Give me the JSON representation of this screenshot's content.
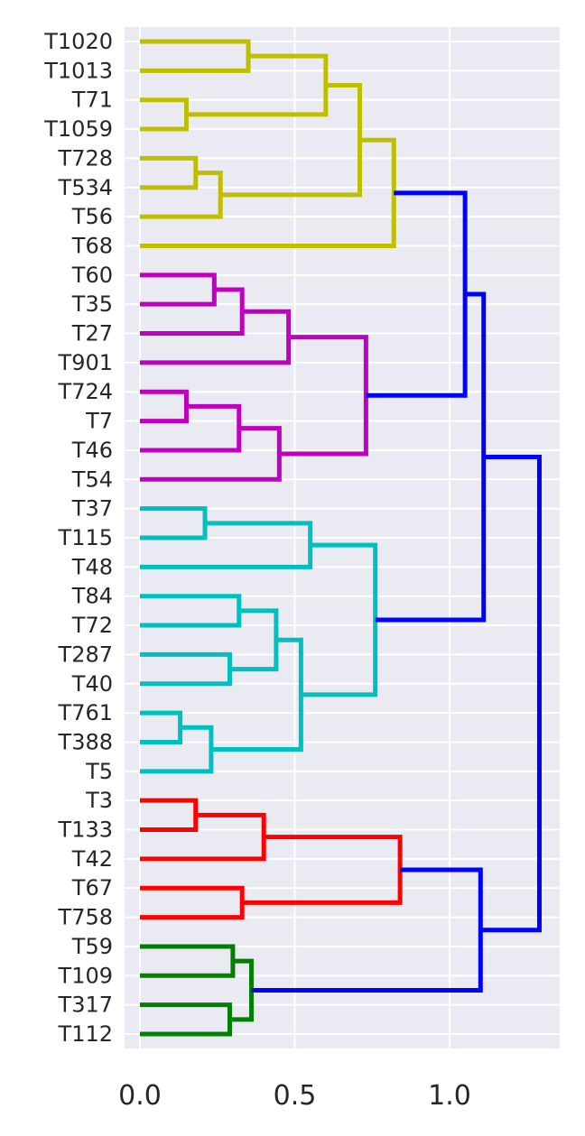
{
  "chart_data": {
    "type": "dendrogram",
    "orientation": "horizontal",
    "leaves": [
      "T1020",
      "T1013",
      "T71",
      "T1059",
      "T728",
      "T534",
      "T56",
      "T68",
      "T60",
      "T35",
      "T27",
      "T901",
      "T724",
      "T7",
      "T46",
      "T54",
      "T37",
      "T115",
      "T48",
      "T84",
      "T72",
      "T287",
      "T40",
      "T761",
      "T388",
      "T5",
      "T3",
      "T133",
      "T42",
      "T67",
      "T758",
      "T59",
      "T109",
      "T317",
      "T112"
    ],
    "x_ticks": [
      {
        "value": 0.0,
        "label": "0.0"
      },
      {
        "value": 0.5,
        "label": "0.5"
      },
      {
        "value": 1.0,
        "label": "1.0"
      }
    ],
    "xlim": [
      0,
      1.35
    ],
    "grid": true,
    "colors": {
      "background": "#eaeaf2",
      "grid": "#ffffff",
      "above_threshold": "#0000ff",
      "clusters": {
        "y": "#bfbf00",
        "m": "#bf00bf",
        "c": "#00bfbf",
        "r": "#ff0000",
        "g": "#008000"
      }
    },
    "merges": [
      {
        "id": "m1",
        "a": "T1020",
        "b": "T1013",
        "height": 0.35,
        "color": "#bfbf00"
      },
      {
        "id": "m2",
        "a": "T71",
        "b": "T1059",
        "height": 0.15,
        "color": "#bfbf00"
      },
      {
        "id": "m3",
        "a": "m1",
        "b": "m2",
        "height": 0.6,
        "color": "#bfbf00"
      },
      {
        "id": "m4",
        "a": "T728",
        "b": "T534",
        "height": 0.18,
        "color": "#bfbf00"
      },
      {
        "id": "m5",
        "a": "m4",
        "b": "T56",
        "height": 0.26,
        "color": "#bfbf00"
      },
      {
        "id": "m6",
        "a": "m3",
        "b": "m5",
        "height": 0.71,
        "color": "#bfbf00"
      },
      {
        "id": "m7",
        "a": "m6",
        "b": "T68",
        "height": 0.82,
        "color": "#bfbf00"
      },
      {
        "id": "m8",
        "a": "T60",
        "b": "T35",
        "height": 0.24,
        "color": "#bf00bf"
      },
      {
        "id": "m9",
        "a": "m8",
        "b": "T27",
        "height": 0.33,
        "color": "#bf00bf"
      },
      {
        "id": "m10",
        "a": "m9",
        "b": "T901",
        "height": 0.48,
        "color": "#bf00bf"
      },
      {
        "id": "m11",
        "a": "T724",
        "b": "T7",
        "height": 0.15,
        "color": "#bf00bf"
      },
      {
        "id": "m12",
        "a": "m11",
        "b": "T46",
        "height": 0.32,
        "color": "#bf00bf"
      },
      {
        "id": "m13",
        "a": "m12",
        "b": "T54",
        "height": 0.45,
        "color": "#bf00bf"
      },
      {
        "id": "m14",
        "a": "m10",
        "b": "m13",
        "height": 0.73,
        "color": "#bf00bf"
      },
      {
        "id": "m15",
        "a": "m7",
        "b": "m14",
        "height": 1.05,
        "color": "#0000ff"
      },
      {
        "id": "m16",
        "a": "T37",
        "b": "T115",
        "height": 0.21,
        "color": "#00bfbf"
      },
      {
        "id": "m17",
        "a": "m16",
        "b": "T48",
        "height": 0.55,
        "color": "#00bfbf"
      },
      {
        "id": "m18",
        "a": "T84",
        "b": "T72",
        "height": 0.32,
        "color": "#00bfbf"
      },
      {
        "id": "m19",
        "a": "T287",
        "b": "T40",
        "height": 0.29,
        "color": "#00bfbf"
      },
      {
        "id": "m20",
        "a": "m18",
        "b": "m19",
        "height": 0.44,
        "color": "#00bfbf"
      },
      {
        "id": "m21",
        "a": "T761",
        "b": "T388",
        "height": 0.13,
        "color": "#00bfbf"
      },
      {
        "id": "m22",
        "a": "m21",
        "b": "T5",
        "height": 0.23,
        "color": "#00bfbf"
      },
      {
        "id": "m23",
        "a": "m20",
        "b": "m22",
        "height": 0.52,
        "color": "#00bfbf"
      },
      {
        "id": "m24",
        "a": "m17",
        "b": "m23",
        "height": 0.76,
        "color": "#00bfbf"
      },
      {
        "id": "m25",
        "a": "m15",
        "b": "m24",
        "height": 1.11,
        "color": "#0000ff"
      },
      {
        "id": "m26",
        "a": "T3",
        "b": "T133",
        "height": 0.18,
        "color": "#ff0000"
      },
      {
        "id": "m27",
        "a": "m26",
        "b": "T42",
        "height": 0.4,
        "color": "#ff0000"
      },
      {
        "id": "m28",
        "a": "T67",
        "b": "T758",
        "height": 0.33,
        "color": "#ff0000"
      },
      {
        "id": "m29",
        "a": "m27",
        "b": "m28",
        "height": 0.84,
        "color": "#ff0000"
      },
      {
        "id": "m30",
        "a": "T59",
        "b": "T109",
        "height": 0.3,
        "color": "#008000"
      },
      {
        "id": "m31",
        "a": "T317",
        "b": "T112",
        "height": 0.29,
        "color": "#008000"
      },
      {
        "id": "m32",
        "a": "m30",
        "b": "m31",
        "height": 0.36,
        "color": "#008000"
      },
      {
        "id": "m33",
        "a": "m29",
        "b": "m32",
        "height": 1.1,
        "color": "#0000ff"
      },
      {
        "id": "m34",
        "a": "m25",
        "b": "m33",
        "height": 1.29,
        "color": "#0000ff"
      }
    ]
  }
}
